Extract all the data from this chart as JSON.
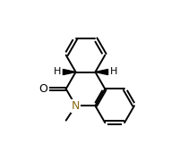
{
  "bg_color": "#ffffff",
  "line_color": "#000000",
  "bond_lw": 1.4,
  "O_color": "#000000",
  "N_color": "#8B6914",
  "H_color": "#000000",
  "font_size": 9,
  "figsize": [
    1.91,
    1.8
  ],
  "dpi": 100,
  "bl": 0.115,
  "xlim": [
    0.0,
    1.0
  ],
  "ylim": [
    0.05,
    1.0
  ]
}
